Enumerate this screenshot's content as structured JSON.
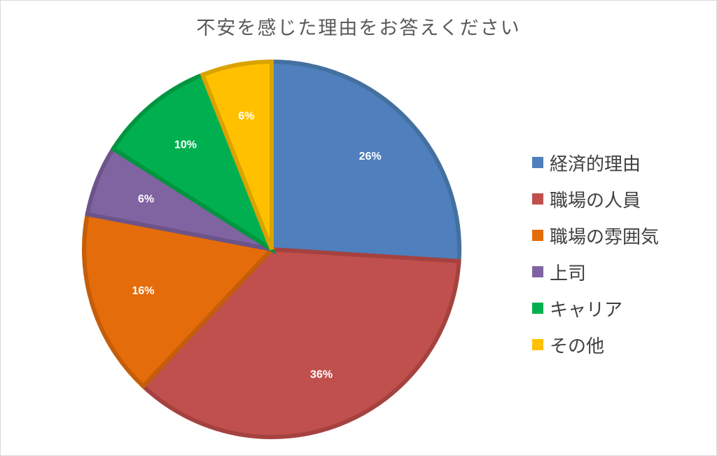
{
  "chart_data": {
    "type": "pie",
    "title": "不安を感じた理由をお答えください",
    "categories": [
      "経済的理由",
      "職場の人員",
      "職場の雰囲気",
      "上司",
      "キャリア",
      "その他"
    ],
    "values": [
      26,
      36,
      16,
      6,
      10,
      6
    ],
    "labels": [
      "26%",
      "36%",
      "16%",
      "6%",
      "10%",
      "6%"
    ],
    "colors": [
      "#4f7fbc",
      "#c0504d",
      "#e46c0a",
      "#8064a2",
      "#00b050",
      "#ffc000"
    ],
    "border_colors": [
      "#44709f",
      "#a5423f",
      "#c55d09",
      "#6c5489",
      "#00953f",
      "#d9a300"
    ],
    "legend_position": "right",
    "start_angle_deg": 0,
    "direction": "clockwise"
  }
}
